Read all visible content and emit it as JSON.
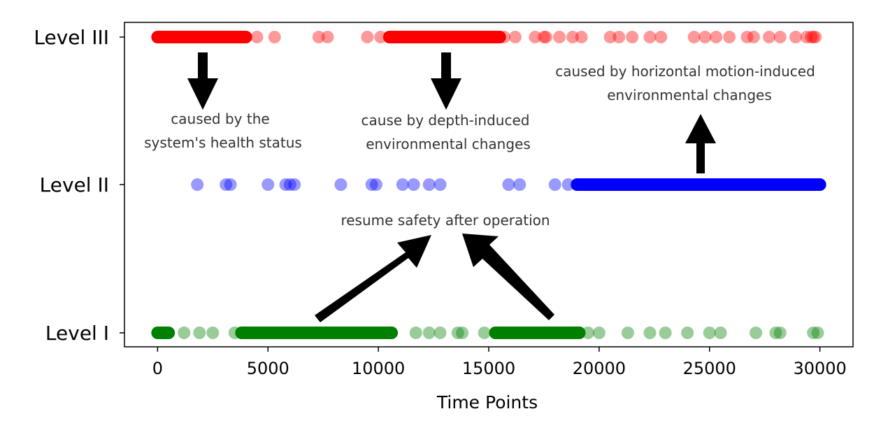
{
  "chart_data": {
    "type": "scatter",
    "title": "",
    "xlabel": "Time Points",
    "ylabel": "",
    "xlim": [
      -1500,
      31500
    ],
    "xticks": [
      0,
      5000,
      10000,
      15000,
      20000,
      25000,
      30000
    ],
    "ycategories": [
      "Level I",
      "Level II",
      "Level III"
    ],
    "grid": false,
    "series": [
      {
        "level": "Level III",
        "color": "#ff0000",
        "dense_ranges": [
          [
            0,
            4000
          ],
          [
            10500,
            15500
          ]
        ],
        "points": [
          4500,
          5300,
          7300,
          7700,
          9500,
          10100,
          15700,
          16200,
          17100,
          17500,
          17600,
          18200,
          18800,
          19200,
          20500,
          20900,
          21500,
          22300,
          22800,
          24300,
          24800,
          25300,
          25900,
          26700,
          27000,
          27700,
          28200,
          28900,
          29400,
          29600,
          29700,
          29800
        ]
      },
      {
        "level": "Level II",
        "color": "#0000ff",
        "dense_ranges": [
          [
            19000,
            30000
          ]
        ],
        "points": [
          1800,
          3100,
          3300,
          5000,
          5800,
          6000,
          6200,
          8300,
          9700,
          9900,
          11100,
          11600,
          12300,
          12800,
          15900,
          16400,
          18000,
          18600
        ]
      },
      {
        "level": "Level I",
        "color": "#008000",
        "dense_ranges": [
          [
            0,
            500
          ],
          [
            3800,
            10600
          ],
          [
            15300,
            19100
          ]
        ],
        "points": [
          1200,
          1900,
          2500,
          3500,
          11700,
          12300,
          12800,
          13600,
          13800,
          14800,
          19500,
          20000,
          21300,
          22300,
          23000,
          24000,
          25000,
          25500,
          27100,
          28000,
          28200,
          29700,
          29900
        ]
      }
    ],
    "annotations": [
      {
        "lines": [
          "caused by the",
          "system's health status"
        ]
      },
      {
        "lines": [
          "cause by depth-induced",
          "environmental changes"
        ]
      },
      {
        "lines": [
          "caused by horizontal motion-induced",
          "environmental changes"
        ]
      },
      {
        "lines": [
          "resume safety after operation"
        ]
      }
    ]
  }
}
